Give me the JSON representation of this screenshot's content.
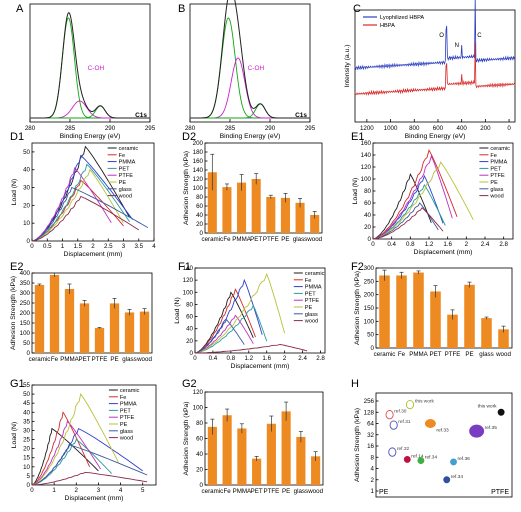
{
  "colors": {
    "ceramic": "#1b1b1b",
    "Fe": "#d42a2a",
    "PMMA": "#2c3fd0",
    "PET": "#2a9a9a",
    "PTFE": "#c12fc1",
    "PE": "#b8c23a",
    "glass": "#3c5aa0",
    "wood": "#8a2a4a",
    "bar": "#ee8a22",
    "xps_env": "#222222",
    "xps_fit_main": "#14a514",
    "xps_fit_coh": "#cc22cc",
    "xps_base": "#3333cc",
    "survey_lyo": "#2e3fbf",
    "survey_hbpa": "#d62c2c"
  },
  "materials": [
    "ceramic",
    "Fe",
    "PMMA",
    "PET",
    "PTFE",
    "PE",
    "glass",
    "wood"
  ],
  "chart_data": [
    {
      "panel": "A",
      "type": "line",
      "xlabel": "Binding Energy (eV)",
      "xlim": [
        295,
        280
      ],
      "xticks": [
        280,
        285,
        290,
        295
      ],
      "annotation": "C-OH",
      "corner_label": "C1s",
      "peaks": [
        {
          "center": 284.8,
          "height": 1.0,
          "width": 0.75
        },
        {
          "center": 286.2,
          "height": 0.17,
          "width": 0.9
        },
        {
          "center": 288.8,
          "height": 0.12,
          "width": 0.6
        }
      ]
    },
    {
      "panel": "B",
      "type": "line",
      "xlabel": "Binding Energy (eV)",
      "xlim": [
        295,
        280
      ],
      "xticks": [
        280,
        285,
        290,
        295
      ],
      "annotation": "C-OH",
      "corner_label": "C1s",
      "peaks": [
        {
          "center": 284.8,
          "height": 1.0,
          "width": 0.85
        },
        {
          "center": 286.0,
          "height": 0.6,
          "width": 0.85
        },
        {
          "center": 288.8,
          "height": 0.14,
          "width": 0.6
        }
      ]
    },
    {
      "panel": "C",
      "type": "line",
      "xlabel": "Binding Energy (eV)",
      "ylabel": "Intensity (a.u.)",
      "xlim": [
        1300,
        -50
      ],
      "xticks": [
        1200,
        1000,
        800,
        600,
        400,
        200,
        0
      ],
      "series": [
        {
          "name": "Lyophilized HBPA"
        },
        {
          "name": "HBPA"
        }
      ],
      "peak_labels": [
        "O",
        "N",
        "C"
      ]
    },
    {
      "panel": "D1",
      "type": "line",
      "xlabel": "Displacement (mm)",
      "ylabel": "Load (N)",
      "xlim": [
        0,
        4.0
      ],
      "ylim": [
        0,
        55
      ],
      "xticks": [
        0,
        0.5,
        1.0,
        1.5,
        2.0,
        2.5,
        3.0,
        3.5,
        4.0
      ],
      "yticks": [
        0,
        10,
        20,
        30,
        40,
        50
      ],
      "series": [
        {
          "name": "ceramic",
          "peak_x": 1.75,
          "peak_y": 53,
          "end_x": 3.2
        },
        {
          "name": "Fe",
          "peak_x": 1.6,
          "peak_y": 34,
          "end_x": 3.0
        },
        {
          "name": "PMMA",
          "peak_x": 1.6,
          "peak_y": 48,
          "end_x": 3.3
        },
        {
          "name": "PET",
          "peak_x": 1.8,
          "peak_y": 43,
          "end_x": 3.2
        },
        {
          "name": "PTFE",
          "peak_x": 1.4,
          "peak_y": 41,
          "end_x": 2.6
        },
        {
          "name": "PE",
          "peak_x": 1.9,
          "peak_y": 40,
          "end_x": 3.0
        },
        {
          "name": "glass",
          "peak_x": 1.3,
          "peak_y": 30,
          "end_x": 3.8
        },
        {
          "name": "wood",
          "peak_x": 1.6,
          "peak_y": 25,
          "end_x": 3.5
        }
      ]
    },
    {
      "panel": "D2",
      "type": "bar",
      "ylabel": "Adhesion Strength (kPa)",
      "ylim": [
        0,
        200
      ],
      "yticks": [
        0,
        20,
        40,
        60,
        80,
        100,
        120,
        140,
        160,
        180,
        200
      ],
      "categories": [
        "ceramic",
        "Fe",
        "PMMA",
        "PET",
        "PTFE",
        "PE",
        "glass",
        "wood"
      ],
      "values": [
        135,
        102,
        112,
        120,
        80,
        78,
        67,
        40
      ],
      "errors": [
        40,
        7,
        18,
        12,
        4,
        10,
        10,
        8
      ]
    },
    {
      "panel": "E1",
      "type": "line",
      "xlabel": "Displacement (mm)",
      "ylabel": "Load (N)",
      "xlim": [
        0,
        3.0
      ],
      "ylim": [
        0,
        160
      ],
      "xticks": [
        0,
        0.4,
        0.8,
        1.2,
        1.6,
        2.0,
        2.4,
        2.8
      ],
      "yticks": [
        0,
        20,
        40,
        60,
        80,
        100,
        120,
        140,
        160
      ],
      "series": [
        {
          "name": "ceramic",
          "peak_x": 0.8,
          "peak_y": 108,
          "end_x": 1.25
        },
        {
          "name": "Fe",
          "peak_x": 1.2,
          "peak_y": 148,
          "end_x": 1.8
        },
        {
          "name": "PMMA",
          "peak_x": 1.1,
          "peak_y": 105,
          "end_x": 1.5
        },
        {
          "name": "PET",
          "peak_x": 1.1,
          "peak_y": 90,
          "end_x": 1.55
        },
        {
          "name": "PTFE",
          "peak_x": 1.25,
          "peak_y": 138,
          "end_x": 1.7
        },
        {
          "name": "PE",
          "peak_x": 1.45,
          "peak_y": 128,
          "end_x": 2.15
        },
        {
          "name": "glass",
          "peak_x": 1.0,
          "peak_y": 60,
          "end_x": 1.4
        },
        {
          "name": "wood",
          "peak_x": 1.05,
          "peak_y": 52,
          "end_x": 1.5
        }
      ]
    },
    {
      "panel": "E2",
      "type": "bar",
      "ylabel": "Adhesion Strength (kPa)",
      "ylim": [
        0,
        400
      ],
      "yticks": [
        0,
        50,
        100,
        150,
        200,
        250,
        300,
        350,
        400
      ],
      "categories": [
        "ceramic",
        "Fe",
        "PMMA",
        "PET",
        "PTFE",
        "PE",
        "glass",
        "wood"
      ],
      "values": [
        340,
        390,
        320,
        248,
        125,
        248,
        203,
        207
      ],
      "errors": [
        5,
        10,
        25,
        15,
        3,
        25,
        15,
        15
      ]
    },
    {
      "panel": "F1",
      "type": "line",
      "xlabel": "Displacement (mm)",
      "ylabel": "Load (N)",
      "xlim": [
        0,
        2.9
      ],
      "ylim": [
        0,
        140
      ],
      "xticks": [
        0,
        0.4,
        0.8,
        1.2,
        1.6,
        2.0,
        2.4,
        2.8
      ],
      "yticks": [
        0,
        20,
        40,
        60,
        80,
        100,
        120,
        140
      ],
      "series": [
        {
          "name": "ceramic",
          "peak_x": 0.8,
          "peak_y": 100,
          "end_x": 1.3
        },
        {
          "name": "Fe",
          "peak_x": 0.9,
          "peak_y": 105,
          "end_x": 1.35
        },
        {
          "name": "PMMA",
          "peak_x": 1.1,
          "peak_y": 120,
          "end_x": 1.5
        },
        {
          "name": "PET",
          "peak_x": 1.3,
          "peak_y": 78,
          "end_x": 1.6
        },
        {
          "name": "PTFE",
          "peak_x": 0.9,
          "peak_y": 62,
          "end_x": 1.3
        },
        {
          "name": "PE",
          "peak_x": 1.6,
          "peak_y": 130,
          "end_x": 2.0
        },
        {
          "name": "glass",
          "peak_x": 0.7,
          "peak_y": 55,
          "end_x": 1.1
        },
        {
          "name": "wood",
          "peak_x": 1.9,
          "peak_y": 14,
          "end_x": 2.5
        }
      ]
    },
    {
      "panel": "F2",
      "type": "bar",
      "ylabel": "Adhesion Strength (kPa)",
      "ylim": [
        0,
        300
      ],
      "yticks": [
        0,
        50,
        100,
        150,
        200,
        250,
        300
      ],
      "categories": [
        "ceramic",
        "Fe",
        "PMMA",
        "PET",
        "PTFE",
        "PE",
        "glass",
        "wood"
      ],
      "values": [
        272,
        272,
        283,
        212,
        125,
        237,
        112,
        70
      ],
      "errors": [
        20,
        12,
        6,
        22,
        18,
        10,
        4,
        12
      ]
    },
    {
      "panel": "G1",
      "type": "line",
      "xlabel": "Displacement (mm)",
      "ylabel": "Load (N)",
      "xlim": [
        0,
        5.6
      ],
      "ylim": [
        0,
        55
      ],
      "xticks": [
        0,
        1,
        2,
        3,
        4,
        5
      ],
      "yticks": [
        0,
        5,
        10,
        15,
        20,
        25,
        30,
        35,
        40,
        45,
        50,
        55
      ],
      "series": [
        {
          "name": "ceramic",
          "peak_x": 0.9,
          "peak_y": 31,
          "end_x": 3.0
        },
        {
          "name": "Fe",
          "peak_x": 1.4,
          "peak_y": 40,
          "end_x": 2.6
        },
        {
          "name": "PMMA",
          "peak_x": 2.1,
          "peak_y": 31,
          "end_x": 5.0
        },
        {
          "name": "PET",
          "peak_x": 2.0,
          "peak_y": 25,
          "end_x": 3.6
        },
        {
          "name": "PTFE",
          "peak_x": 1.6,
          "peak_y": 35,
          "end_x": 3.1
        },
        {
          "name": "PE",
          "peak_x": 2.2,
          "peak_y": 50,
          "end_x": 3.9
        },
        {
          "name": "glass",
          "peak_x": 1.7,
          "peak_y": 22,
          "end_x": 5.2
        },
        {
          "name": "wood",
          "peak_x": 2.4,
          "peak_y": 7,
          "end_x": 5.2
        }
      ]
    },
    {
      "panel": "G2",
      "type": "bar",
      "ylabel": "Adhesion Strength (kPa)",
      "ylim": [
        0,
        120
      ],
      "yticks": [
        0,
        20,
        40,
        60,
        80,
        100,
        120
      ],
      "categories": [
        "ceramic",
        "Fe",
        "PMMA",
        "PET",
        "PTFE",
        "PE",
        "glass",
        "wood"
      ],
      "values": [
        75,
        90,
        73,
        34,
        79,
        95,
        62,
        37
      ],
      "errors": [
        10,
        8,
        6,
        3,
        10,
        12,
        7,
        6
      ]
    },
    {
      "panel": "H",
      "type": "scatter",
      "ylabel": "Adhesion Strength (kPa)",
      "ylog": true,
      "yticks": [
        1,
        2,
        4,
        8,
        16,
        32,
        64,
        128,
        256
      ],
      "left_label": "PE",
      "right_label": "PTFE",
      "points": [
        {
          "label": "ref.30",
          "y": 110,
          "group": "PE",
          "color": "#e05050"
        },
        {
          "label": "this work",
          "y": 205,
          "group": "PE",
          "color": "#a8c030"
        },
        {
          "label": "ref.31",
          "y": 58,
          "group": "PE",
          "color": "#5050c0"
        },
        {
          "label": "ref.32",
          "y": 11,
          "group": "PE",
          "color": "#5050c0"
        },
        {
          "label": "ref.33",
          "y": 64,
          "group": "PTFE",
          "color": "#ee8a22"
        },
        {
          "label": "this work",
          "y": 128,
          "group": "PTFE",
          "color": "#111111"
        },
        {
          "label": "ref.35",
          "y": 40,
          "group": "PTFE",
          "color": "#7a3cc0"
        },
        {
          "label": "ref.14",
          "y": 7,
          "group": "PTFE",
          "color": "#c01040"
        },
        {
          "label": "ref.34",
          "y": 6.5,
          "group": "PTFE",
          "color": "#40b040"
        },
        {
          "label": "ref.36",
          "y": 6,
          "group": "PTFE",
          "color": "#40a0d0"
        },
        {
          "label": "ref.34",
          "y": 2,
          "group": "PTFE",
          "color": "#3050a0"
        }
      ]
    }
  ]
}
